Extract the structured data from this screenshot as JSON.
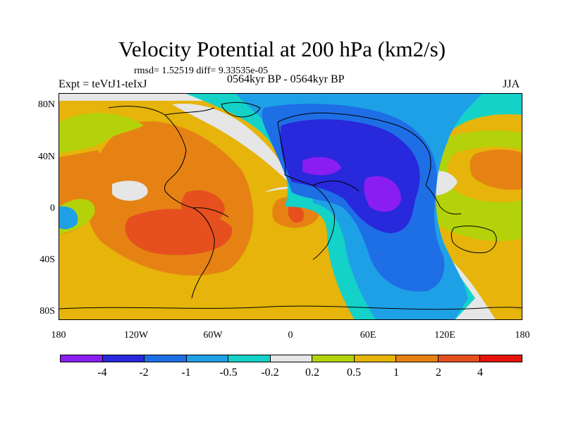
{
  "header": {
    "title": "Velocity Potential at 200 hPa (km2/s)",
    "stats": "rmsd= 1.52519 diff= 9.33535e-05",
    "expt": "Expt = teVtJ1-teIxJ",
    "period": "0564kyr BP - 0564kyr BP",
    "season": "JJA"
  },
  "axes": {
    "lat_ticks": [
      "80N",
      "40N",
      "0",
      "40S",
      "80S"
    ],
    "lon_ticks": [
      "180",
      "120W",
      "60W",
      "0",
      "60E",
      "120E",
      "180"
    ]
  },
  "colorbar": {
    "colors": [
      "#8a1ef0",
      "#2828dc",
      "#1e6ee6",
      "#1ea0e6",
      "#14d2c8",
      "#e6e6e6",
      "#b4d20a",
      "#e6b40a",
      "#e68214",
      "#e6501e",
      "#e6140a"
    ],
    "labels": [
      "-4",
      "-2",
      "-1",
      "-0.5",
      "-0.2",
      "0.2",
      "0.5",
      "1",
      "2",
      "4"
    ]
  },
  "fill_colors": {
    "base": "#e6b40a",
    "land": "#000000"
  }
}
